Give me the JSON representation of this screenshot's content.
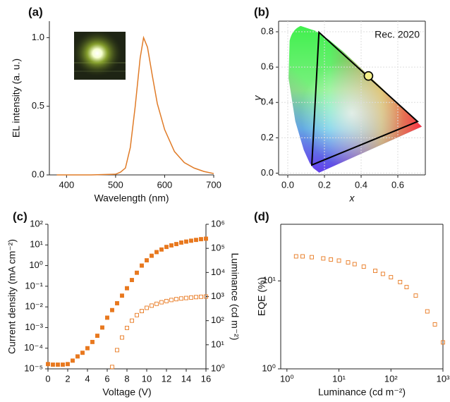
{
  "chart_data": [
    {
      "type": "line",
      "label": "(a)",
      "xlabel": "Wavelength (nm)",
      "ylabel": "EL intensity (a. u.)",
      "x": [
        380,
        450,
        500,
        510,
        520,
        530,
        540,
        550,
        557,
        565,
        575,
        585,
        600,
        620,
        640,
        660,
        680,
        700
      ],
      "series": [
        {
          "color": "#e07b27",
          "values": [
            0,
            0,
            0.005,
            0.02,
            0.05,
            0.2,
            0.5,
            0.85,
            1.0,
            0.93,
            0.72,
            0.52,
            0.33,
            0.17,
            0.09,
            0.05,
            0.025,
            0.01
          ]
        }
      ],
      "xlim": [
        365,
        700
      ],
      "ylim": [
        0,
        1.12
      ],
      "xticks": [
        400,
        500,
        600,
        700
      ],
      "yticks": [
        {
          "value": 0,
          "label": "0.0"
        },
        {
          "value": 0.5,
          "label": "0.5"
        },
        {
          "value": 1,
          "label": "1.0"
        }
      ]
    },
    {
      "type": "cie",
      "label": "(b)",
      "xlabel": "x",
      "ylabel": "y",
      "annotation": "Rec. 2020",
      "triangle": {
        "x": [
          0.708,
          0.17,
          0.131
        ],
        "y": [
          0.292,
          0.797,
          0.046
        ],
        "color": "#000000"
      },
      "point": {
        "x": [
          0.44
        ],
        "y": [
          0.55
        ],
        "color": "#f5f08a"
      },
      "xlim": [
        -0.05,
        0.75
      ],
      "ylim": [
        -0.01,
        0.86
      ],
      "grid": true,
      "xticks": [
        {
          "value": 0,
          "label": "0.0"
        },
        {
          "value": 0.2,
          "label": "0.2"
        },
        {
          "value": 0.4,
          "label": "0.4"
        },
        {
          "value": 0.6,
          "label": "0.6"
        }
      ],
      "yticks": [
        {
          "value": 0,
          "label": "0.0"
        },
        {
          "value": 0.2,
          "label": "0.2"
        },
        {
          "value": 0.4,
          "label": "0.4"
        },
        {
          "value": 0.6,
          "label": "0.6"
        },
        {
          "value": 0.8,
          "label": "0.8"
        }
      ]
    },
    {
      "type": "scatter",
      "label": "(c)",
      "xlabel": "Voltage (V)",
      "ylabel": "Current density (mA cm⁻²)",
      "y2label": "Luminance (cd m⁻²)",
      "yscale": "log",
      "y2scale": "log",
      "x": [
        0,
        0.5,
        1,
        1.5,
        2,
        2.5,
        3,
        3.5,
        4,
        4.5,
        5,
        5.5,
        6,
        6.5,
        7,
        7.5,
        8,
        8.5,
        9,
        9.5,
        10,
        10.5,
        11,
        11.5,
        12,
        12.5,
        13,
        13.5,
        14,
        14.5,
        15,
        15.5,
        16
      ],
      "series": [
        {
          "color": "#e8781e",
          "marker": "filled-square",
          "values": [
            1.7e-05,
            1.6e-05,
            1.6e-05,
            1.6e-05,
            1.7e-05,
            2.5e-05,
            4e-05,
            6e-05,
            0.0001,
            0.0002,
            0.0004,
            0.001,
            0.003,
            0.007,
            0.015,
            0.035,
            0.08,
            0.2,
            0.45,
            1,
            1.8,
            3,
            4.5,
            6,
            8,
            9.5,
            11,
            13,
            14.5,
            16,
            17.5,
            19,
            20
          ]
        },
        {
          "color": "#e8781e",
          "marker": "open-square",
          "axis": "y2",
          "values": [
            null,
            null,
            null,
            null,
            null,
            null,
            null,
            null,
            null,
            null,
            null,
            null,
            null,
            1.2,
            6,
            20,
            50,
            100,
            170,
            250,
            340,
            420,
            500,
            580,
            650,
            720,
            780,
            830,
            870,
            910,
            950,
            980,
            1000
          ]
        }
      ],
      "xlim": [
        0,
        16
      ],
      "xticks": [
        0,
        2,
        4,
        6,
        8,
        10,
        12,
        14,
        16
      ],
      "ylim": [
        1e-05,
        100
      ],
      "yticks": [
        {
          "value": 1e-05,
          "label": "10⁻⁵"
        },
        {
          "value": 0.0001,
          "label": "10⁻⁴"
        },
        {
          "value": 0.001,
          "label": "10⁻³"
        },
        {
          "value": 0.01,
          "label": "10⁻²"
        },
        {
          "value": 0.1,
          "label": "10⁻¹"
        },
        {
          "value": 1,
          "label": "10⁰"
        },
        {
          "value": 10,
          "label": "10¹"
        },
        {
          "value": 100,
          "label": "10²"
        }
      ],
      "y2lim": [
        1,
        1000000
      ],
      "y2ticks": [
        {
          "value": 1,
          "label": "10⁰"
        },
        {
          "value": 10,
          "label": "10¹"
        },
        {
          "value": 100,
          "label": "10²"
        },
        {
          "value": 1000,
          "label": "10³"
        },
        {
          "value": 10000,
          "label": "10⁴"
        },
        {
          "value": 100000,
          "label": "10⁵"
        },
        {
          "value": 1000000,
          "label": "10⁶"
        }
      ]
    },
    {
      "type": "scatter",
      "label": "(d)",
      "xlabel": "Luminance (cd m⁻²)",
      "ylabel": "EQE (%)",
      "xscale": "log",
      "yscale": "log",
      "x": [
        1.5,
        2,
        3,
        5,
        7,
        10,
        15,
        20,
        30,
        50,
        70,
        100,
        150,
        200,
        300,
        500,
        700,
        1000
      ],
      "series": [
        {
          "color": "#e8781e",
          "marker": "open-square",
          "values": [
            19,
            19,
            18.6,
            18,
            17.5,
            17,
            16.2,
            15.5,
            14.5,
            13,
            12,
            11,
            9.7,
            8.5,
            6.8,
            4.5,
            3.2,
            2
          ]
        }
      ],
      "xlim": [
        0.76,
        1000
      ],
      "ylim": [
        1,
        44
      ],
      "xticks": [
        {
          "value": 1,
          "label": "10⁰"
        },
        {
          "value": 10,
          "label": "10¹"
        },
        {
          "value": 100,
          "label": "10²"
        },
        {
          "value": 1000,
          "label": "10³"
        }
      ],
      "yticks": [
        {
          "value": 1,
          "label": "10⁰"
        },
        {
          "value": 10,
          "label": "10¹"
        }
      ]
    }
  ]
}
